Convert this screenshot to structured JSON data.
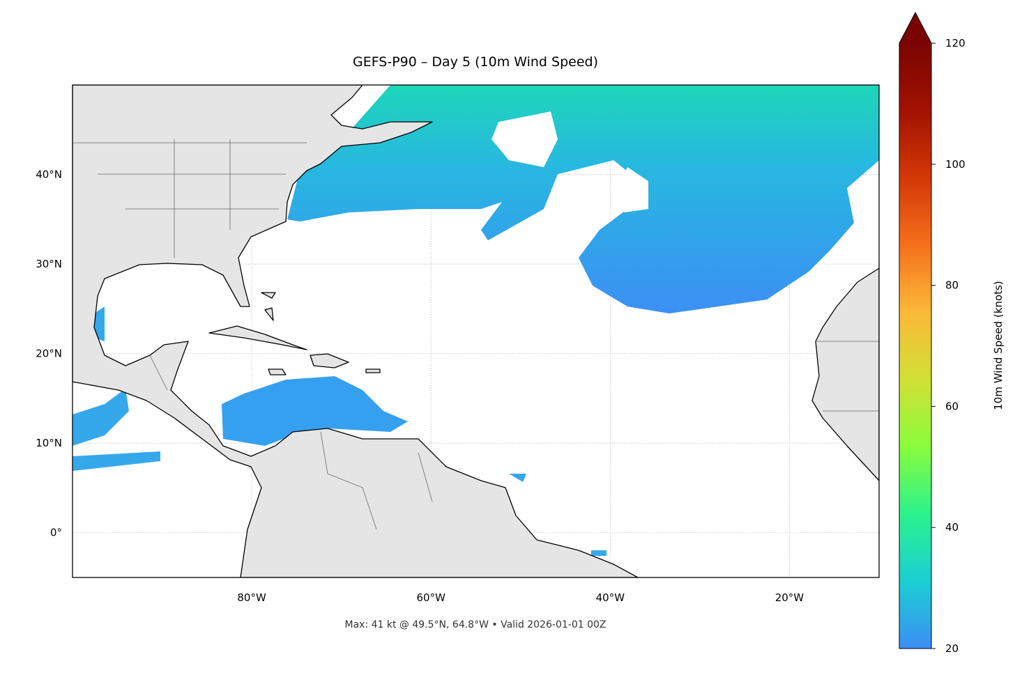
{
  "chart_data": {
    "type": "map",
    "title": "GEFS-P90 – Day 5 (10m Wind Speed)",
    "subtitle": "Max: 41 kt @ 49.5°N, 64.8°W • Valid 2026-01-01 00Z",
    "xlim": [
      -100,
      -10
    ],
    "ylim": [
      -5,
      50
    ],
    "xticks": [
      {
        "value": -80,
        "label": "80°W"
      },
      {
        "value": -60,
        "label": "60°W"
      },
      {
        "value": -40,
        "label": "40°W"
      },
      {
        "value": -20,
        "label": "20°W"
      }
    ],
    "yticks": [
      {
        "value": 0,
        "label": "0°"
      },
      {
        "value": 10,
        "label": "10°N"
      },
      {
        "value": 20,
        "label": "20°N"
      },
      {
        "value": 30,
        "label": "30°N"
      },
      {
        "value": 40,
        "label": "40°N"
      }
    ],
    "grid": true,
    "colorbar": {
      "label": "10m Wind Speed (knots)",
      "lim": [
        20,
        120
      ],
      "ticks": [
        20,
        40,
        60,
        80,
        100,
        120
      ],
      "extend": "max",
      "colors": [
        "#3c8ff5",
        "#1bcfd4",
        "#2cf28c",
        "#8afc3c",
        "#d2e035",
        "#fbb938",
        "#f5701c",
        "#d33806",
        "#a11201",
        "#7a0403"
      ]
    }
  }
}
